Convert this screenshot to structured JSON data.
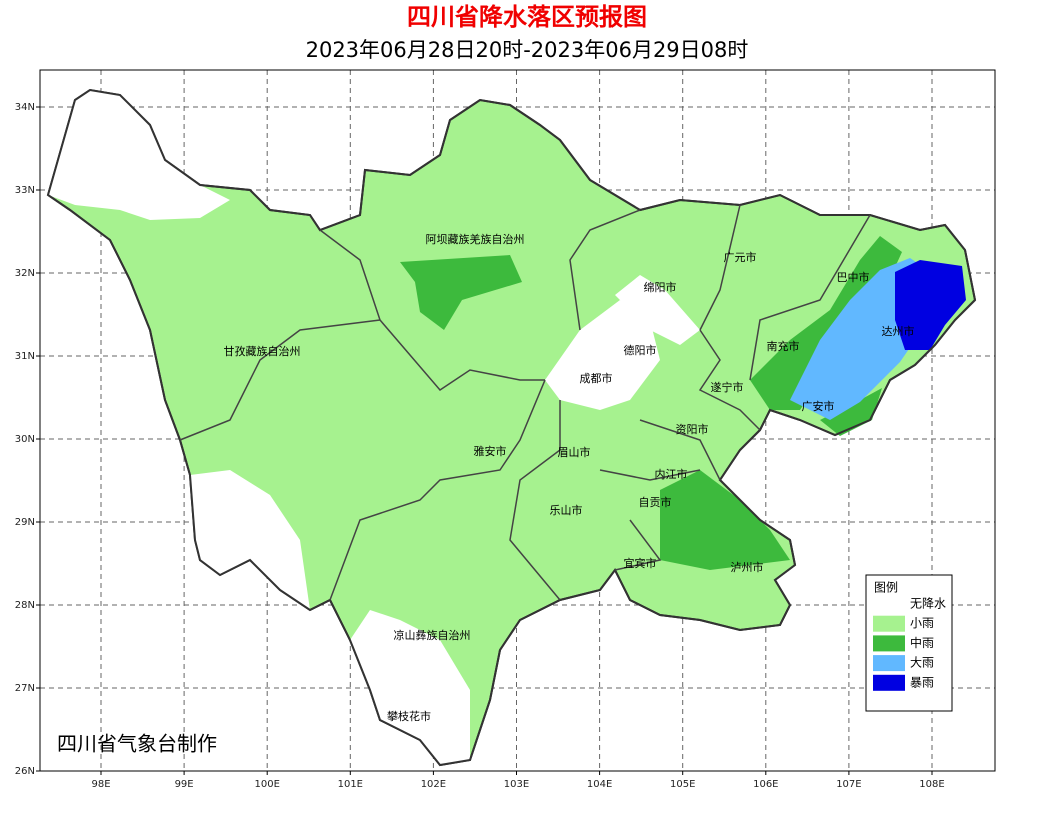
{
  "header": {
    "title": "四川省降水落区预报图",
    "subtitle": "2023年06月28日20时-2023年06月29日08时"
  },
  "map": {
    "lon_ticks": [
      {
        "value": 98,
        "label": "98E"
      },
      {
        "value": 99,
        "label": "99E"
      },
      {
        "value": 100,
        "label": "100E"
      },
      {
        "value": 101,
        "label": "101E"
      },
      {
        "value": 102,
        "label": "102E"
      },
      {
        "value": 103,
        "label": "103E"
      },
      {
        "value": 104,
        "label": "104E"
      },
      {
        "value": 105,
        "label": "105E"
      },
      {
        "value": 106,
        "label": "106E"
      },
      {
        "value": 107,
        "label": "107E"
      },
      {
        "value": 108,
        "label": "108E"
      }
    ],
    "lat_ticks": [
      {
        "value": 34,
        "label": "34N"
      },
      {
        "value": 33,
        "label": "33N"
      },
      {
        "value": 32,
        "label": "32N"
      },
      {
        "value": 31,
        "label": "31N"
      },
      {
        "value": 30,
        "label": "30N"
      },
      {
        "value": 29,
        "label": "29N"
      },
      {
        "value": 28,
        "label": "28N"
      },
      {
        "value": 27,
        "label": "27N"
      },
      {
        "value": 26,
        "label": "26N"
      }
    ],
    "places": [
      "阿坝藏族羌族自治州",
      "广元市",
      "巴中市",
      "绵阳市",
      "达州市",
      "甘孜藏族自治州",
      "南充市",
      "德阳市",
      "成都市",
      "遂宁市",
      "广安市",
      "资阳市",
      "雅安市",
      "眉山市",
      "内江市",
      "自贡市",
      "乐山市",
      "宜宾市",
      "泸州市",
      "凉山彝族自治州",
      "攀枝花市"
    ],
    "credit": "四川省气象台制作"
  },
  "legend": {
    "title": "图例",
    "items": [
      {
        "label": "无降水",
        "color": "#ffffff"
      },
      {
        "label": "小雨",
        "color": "#a6f28f"
      },
      {
        "label": "中雨",
        "color": "#3dba3d"
      },
      {
        "label": "大雨",
        "color": "#61b8ff"
      },
      {
        "label": "暴雨",
        "color": "#0000e1"
      }
    ]
  }
}
